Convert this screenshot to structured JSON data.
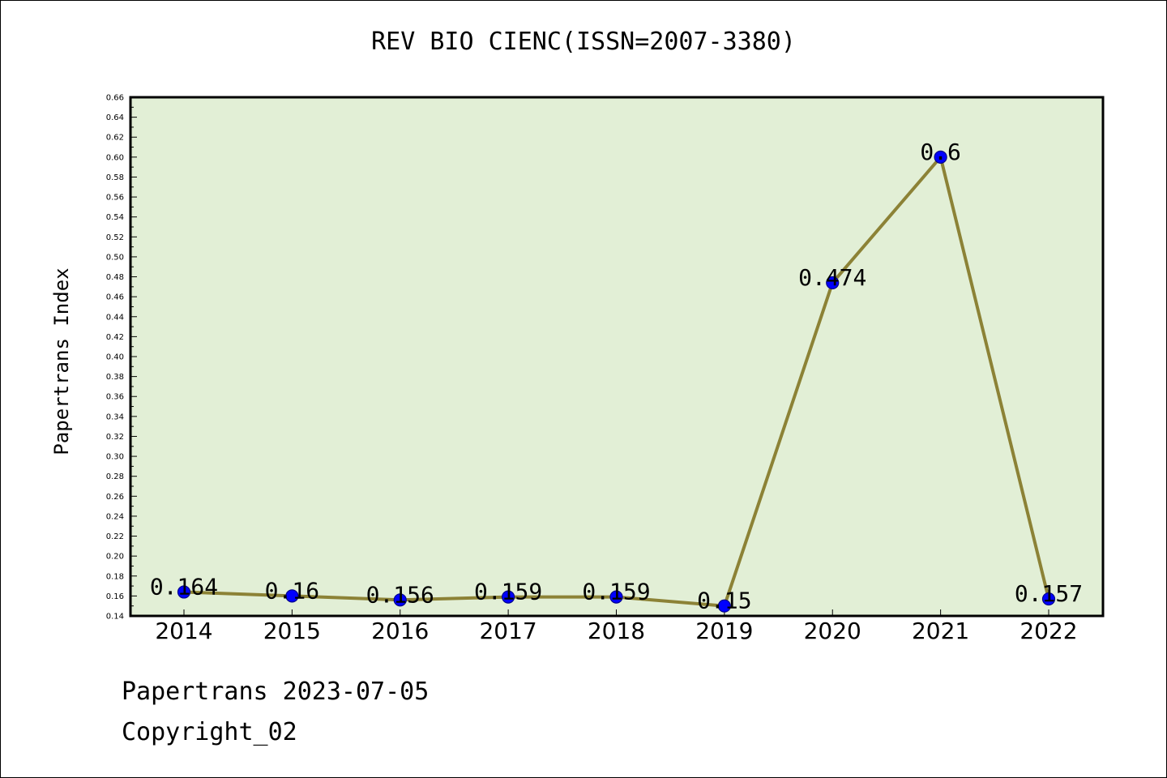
{
  "chart_data": {
    "type": "line",
    "title": "REV BIO CIENC(ISSN=2007-3380)",
    "xlabel": "",
    "ylabel": "Papertrans Index",
    "categories": [
      "2014",
      "2015",
      "2016",
      "2017",
      "2018",
      "2019",
      "2020",
      "2021",
      "2022"
    ],
    "values": [
      0.164,
      0.16,
      0.156,
      0.159,
      0.159,
      0.15,
      0.474,
      0.6,
      0.157
    ],
    "data_labels": [
      "0.164",
      "0.16",
      "0.156",
      "0.159",
      "0.159",
      "0.15",
      "0.474",
      "0.6",
      "0.157"
    ],
    "ylim": [
      0.14,
      0.66
    ],
    "yticks": [
      "0.14",
      "0.16",
      "0.18",
      "0.20",
      "0.22",
      "0.24",
      "0.26",
      "0.28",
      "0.30",
      "0.32",
      "0.34",
      "0.36",
      "0.38",
      "0.40",
      "0.42",
      "0.44",
      "0.46",
      "0.48",
      "0.50",
      "0.52",
      "0.54",
      "0.56",
      "0.58",
      "0.60",
      "0.62",
      "0.64",
      "0.66"
    ],
    "grid": false,
    "colors": {
      "plot_background": "#e2efd6",
      "line": "#8c8236",
      "marker": "#0000ff",
      "marker_edge": "#00008b"
    }
  },
  "footer": {
    "line1": "Papertrans 2023-07-05",
    "line2": "Copyright_02"
  }
}
